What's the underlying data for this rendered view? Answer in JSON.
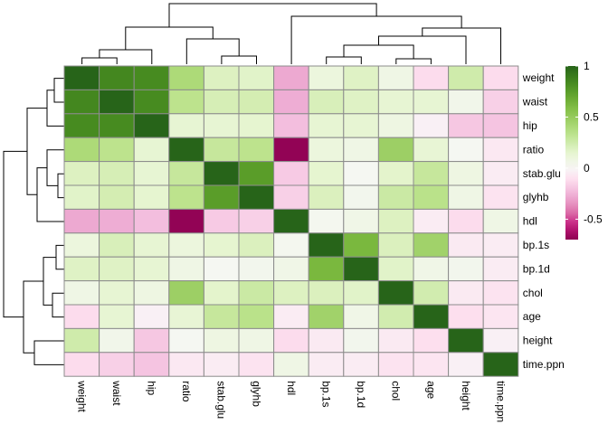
{
  "chart_data": {
    "type": "heatmap",
    "title": "",
    "labels": [
      "weight",
      "waist",
      "hip",
      "ratio",
      "stab.glu",
      "glyhb",
      "hdl",
      "bp.1s",
      "bp.1d",
      "chol",
      "age",
      "height",
      "time.ppn"
    ],
    "matrix": [
      [
        1.0,
        0.85,
        0.83,
        0.4,
        0.19,
        0.17,
        -0.28,
        0.1,
        0.18,
        0.07,
        -0.12,
        0.25,
        -0.12
      ],
      [
        0.85,
        1.0,
        0.83,
        0.33,
        0.22,
        0.23,
        -0.27,
        0.21,
        0.18,
        0.14,
        0.14,
        0.05,
        -0.16
      ],
      [
        0.83,
        0.83,
        1.0,
        0.14,
        0.14,
        0.15,
        -0.22,
        0.14,
        0.14,
        0.08,
        -0.03,
        -0.19,
        -0.2
      ],
      [
        0.4,
        0.33,
        0.14,
        1.0,
        0.29,
        0.33,
        -0.69,
        0.1,
        0.07,
        0.47,
        0.13,
        0.02,
        -0.07
      ],
      [
        0.19,
        0.22,
        0.14,
        0.29,
        1.0,
        0.75,
        -0.18,
        0.15,
        0.02,
        0.16,
        0.29,
        0.08,
        -0.05
      ],
      [
        0.17,
        0.23,
        0.15,
        0.33,
        0.75,
        1.0,
        -0.16,
        0.2,
        0.04,
        0.27,
        0.34,
        0.07,
        -0.09
      ],
      [
        -0.28,
        -0.27,
        -0.22,
        -0.69,
        -0.18,
        -0.16,
        1.0,
        0.03,
        0.06,
        0.19,
        -0.05,
        -0.12,
        0.07
      ],
      [
        0.1,
        0.21,
        0.14,
        0.1,
        0.15,
        0.2,
        0.03,
        1.0,
        0.62,
        0.2,
        0.45,
        -0.06,
        -0.05
      ],
      [
        0.18,
        0.18,
        0.14,
        0.07,
        0.02,
        0.04,
        0.06,
        0.62,
        1.0,
        0.17,
        0.06,
        0.04,
        -0.05
      ],
      [
        0.07,
        0.14,
        0.08,
        0.47,
        0.16,
        0.27,
        0.19,
        0.2,
        0.17,
        1.0,
        0.24,
        -0.06,
        -0.09
      ],
      [
        -0.12,
        0.14,
        -0.03,
        0.13,
        0.29,
        0.34,
        -0.05,
        0.45,
        0.06,
        0.24,
        1.0,
        -0.11,
        -0.08
      ],
      [
        0.25,
        0.05,
        -0.19,
        0.02,
        0.08,
        0.07,
        -0.12,
        -0.06,
        0.04,
        -0.06,
        -0.11,
        1.0,
        -0.03
      ],
      [
        -0.12,
        -0.16,
        -0.2,
        -0.07,
        -0.05,
        -0.09,
        0.07,
        -0.05,
        -0.05,
        -0.09,
        -0.08,
        -0.03,
        1.0
      ]
    ],
    "color_scale": {
      "min": -0.7,
      "max": 1,
      "low": "#8e0152",
      "mid": "#f7f7f7",
      "high": "#276419"
    },
    "legend": {
      "position": "right",
      "ticks": [
        1,
        0.5,
        0,
        -0.5
      ]
    },
    "row_dendrogram": "left",
    "column_dendrogram": "top"
  }
}
